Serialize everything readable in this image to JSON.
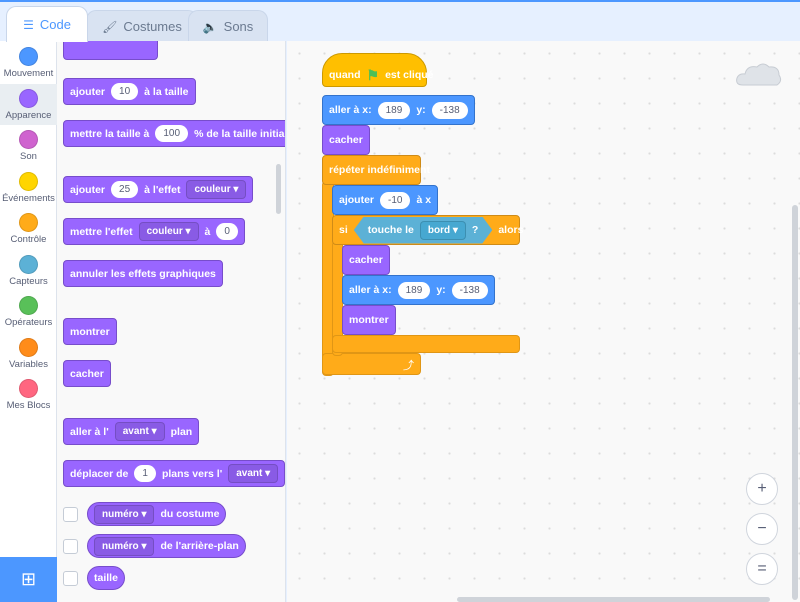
{
  "tabs": [
    {
      "label": "Code",
      "icon": "code-icon"
    },
    {
      "label": "Costumes",
      "icon": "brush-icon"
    },
    {
      "label": "Sons",
      "icon": "speaker-icon"
    }
  ],
  "categories": [
    {
      "label": "Mouvement",
      "color": "#4c97ff"
    },
    {
      "label": "Apparence",
      "color": "#9966ff"
    },
    {
      "label": "Son",
      "color": "#cf63cf"
    },
    {
      "label": "Événements",
      "color": "#ffd500"
    },
    {
      "label": "Contrôle",
      "color": "#ffab19"
    },
    {
      "label": "Capteurs",
      "color": "#5cb1d6"
    },
    {
      "label": "Opérateurs",
      "color": "#59c059"
    },
    {
      "label": "Variables",
      "color": "#ff8c1a"
    },
    {
      "label": "Mes Blocs",
      "color": "#ff6680"
    }
  ],
  "selected_category": "Apparence",
  "palette_blocks": [
    {
      "parts": []
    },
    {
      "parts": [
        {
          "t": "ajouter"
        },
        {
          "in": "10"
        },
        {
          "t": "à la taille"
        }
      ]
    },
    {
      "parts": [
        {
          "t": "mettre la taille à"
        },
        {
          "in": "100"
        },
        {
          "t": "% de la taille initiale"
        }
      ]
    },
    {
      "parts": [
        {
          "t": "ajouter"
        },
        {
          "in": "25"
        },
        {
          "t": "à l'effet"
        },
        {
          "dd": "couleur"
        }
      ]
    },
    {
      "parts": [
        {
          "t": "mettre l'effet"
        },
        {
          "dd": "couleur"
        },
        {
          "t": "à"
        },
        {
          "in": "0"
        }
      ]
    },
    {
      "parts": [
        {
          "t": "annuler les effets graphiques"
        }
      ]
    },
    {
      "parts": [
        {
          "t": "montrer"
        }
      ]
    },
    {
      "parts": [
        {
          "t": "cacher"
        }
      ]
    },
    {
      "parts": [
        {
          "t": "aller à l'"
        },
        {
          "dd": "avant"
        },
        {
          "t": "plan"
        }
      ]
    },
    {
      "parts": [
        {
          "t": "déplacer de"
        },
        {
          "in": "1"
        },
        {
          "t": "plans vers l'"
        },
        {
          "dd": "avant"
        }
      ]
    },
    {
      "reporter": true,
      "parts": [
        {
          "dd": "numéro"
        },
        {
          "t": "du costume"
        }
      ]
    },
    {
      "reporter": true,
      "parts": [
        {
          "dd": "numéro"
        },
        {
          "t": "de l'arrière-plan"
        }
      ]
    },
    {
      "reporter": true,
      "parts": [
        {
          "t": "taille"
        }
      ]
    }
  ],
  "script": {
    "hat": {
      "parts": [
        {
          "t": "quand"
        },
        {
          "icon": "green-flag-icon"
        },
        {
          "t": "est cliqué"
        }
      ]
    },
    "goto1": {
      "parts": [
        {
          "t": "aller à x:"
        },
        {
          "in": "189"
        },
        {
          "t": "y:"
        },
        {
          "in": "-138"
        }
      ]
    },
    "hide1": {
      "parts": [
        {
          "t": "cacher"
        }
      ]
    },
    "forever": {
      "parts": [
        {
          "t": "répéter indéfiniment"
        }
      ]
    },
    "change": {
      "parts": [
        {
          "t": "ajouter"
        },
        {
          "in": "-10"
        },
        {
          "t": "à x"
        }
      ]
    },
    "if": {
      "parts": [
        {
          "t": "si"
        },
        {
          "sense": [
            "touche le",
            "bord",
            "?"
          ]
        },
        {
          "t": "alors"
        }
      ]
    },
    "hide2": {
      "parts": [
        {
          "t": "cacher"
        }
      ]
    },
    "goto2": {
      "parts": [
        {
          "t": "aller à x:"
        },
        {
          "in": "189"
        },
        {
          "t": "y:"
        },
        {
          "in": "-138"
        }
      ]
    },
    "show": {
      "parts": [
        {
          "t": "montrer"
        }
      ]
    }
  },
  "zoom_buttons": [
    {
      "name": "zoom-in",
      "glyph": "+"
    },
    {
      "name": "zoom-out",
      "glyph": "−"
    },
    {
      "name": "zoom-reset",
      "glyph": "="
    }
  ]
}
